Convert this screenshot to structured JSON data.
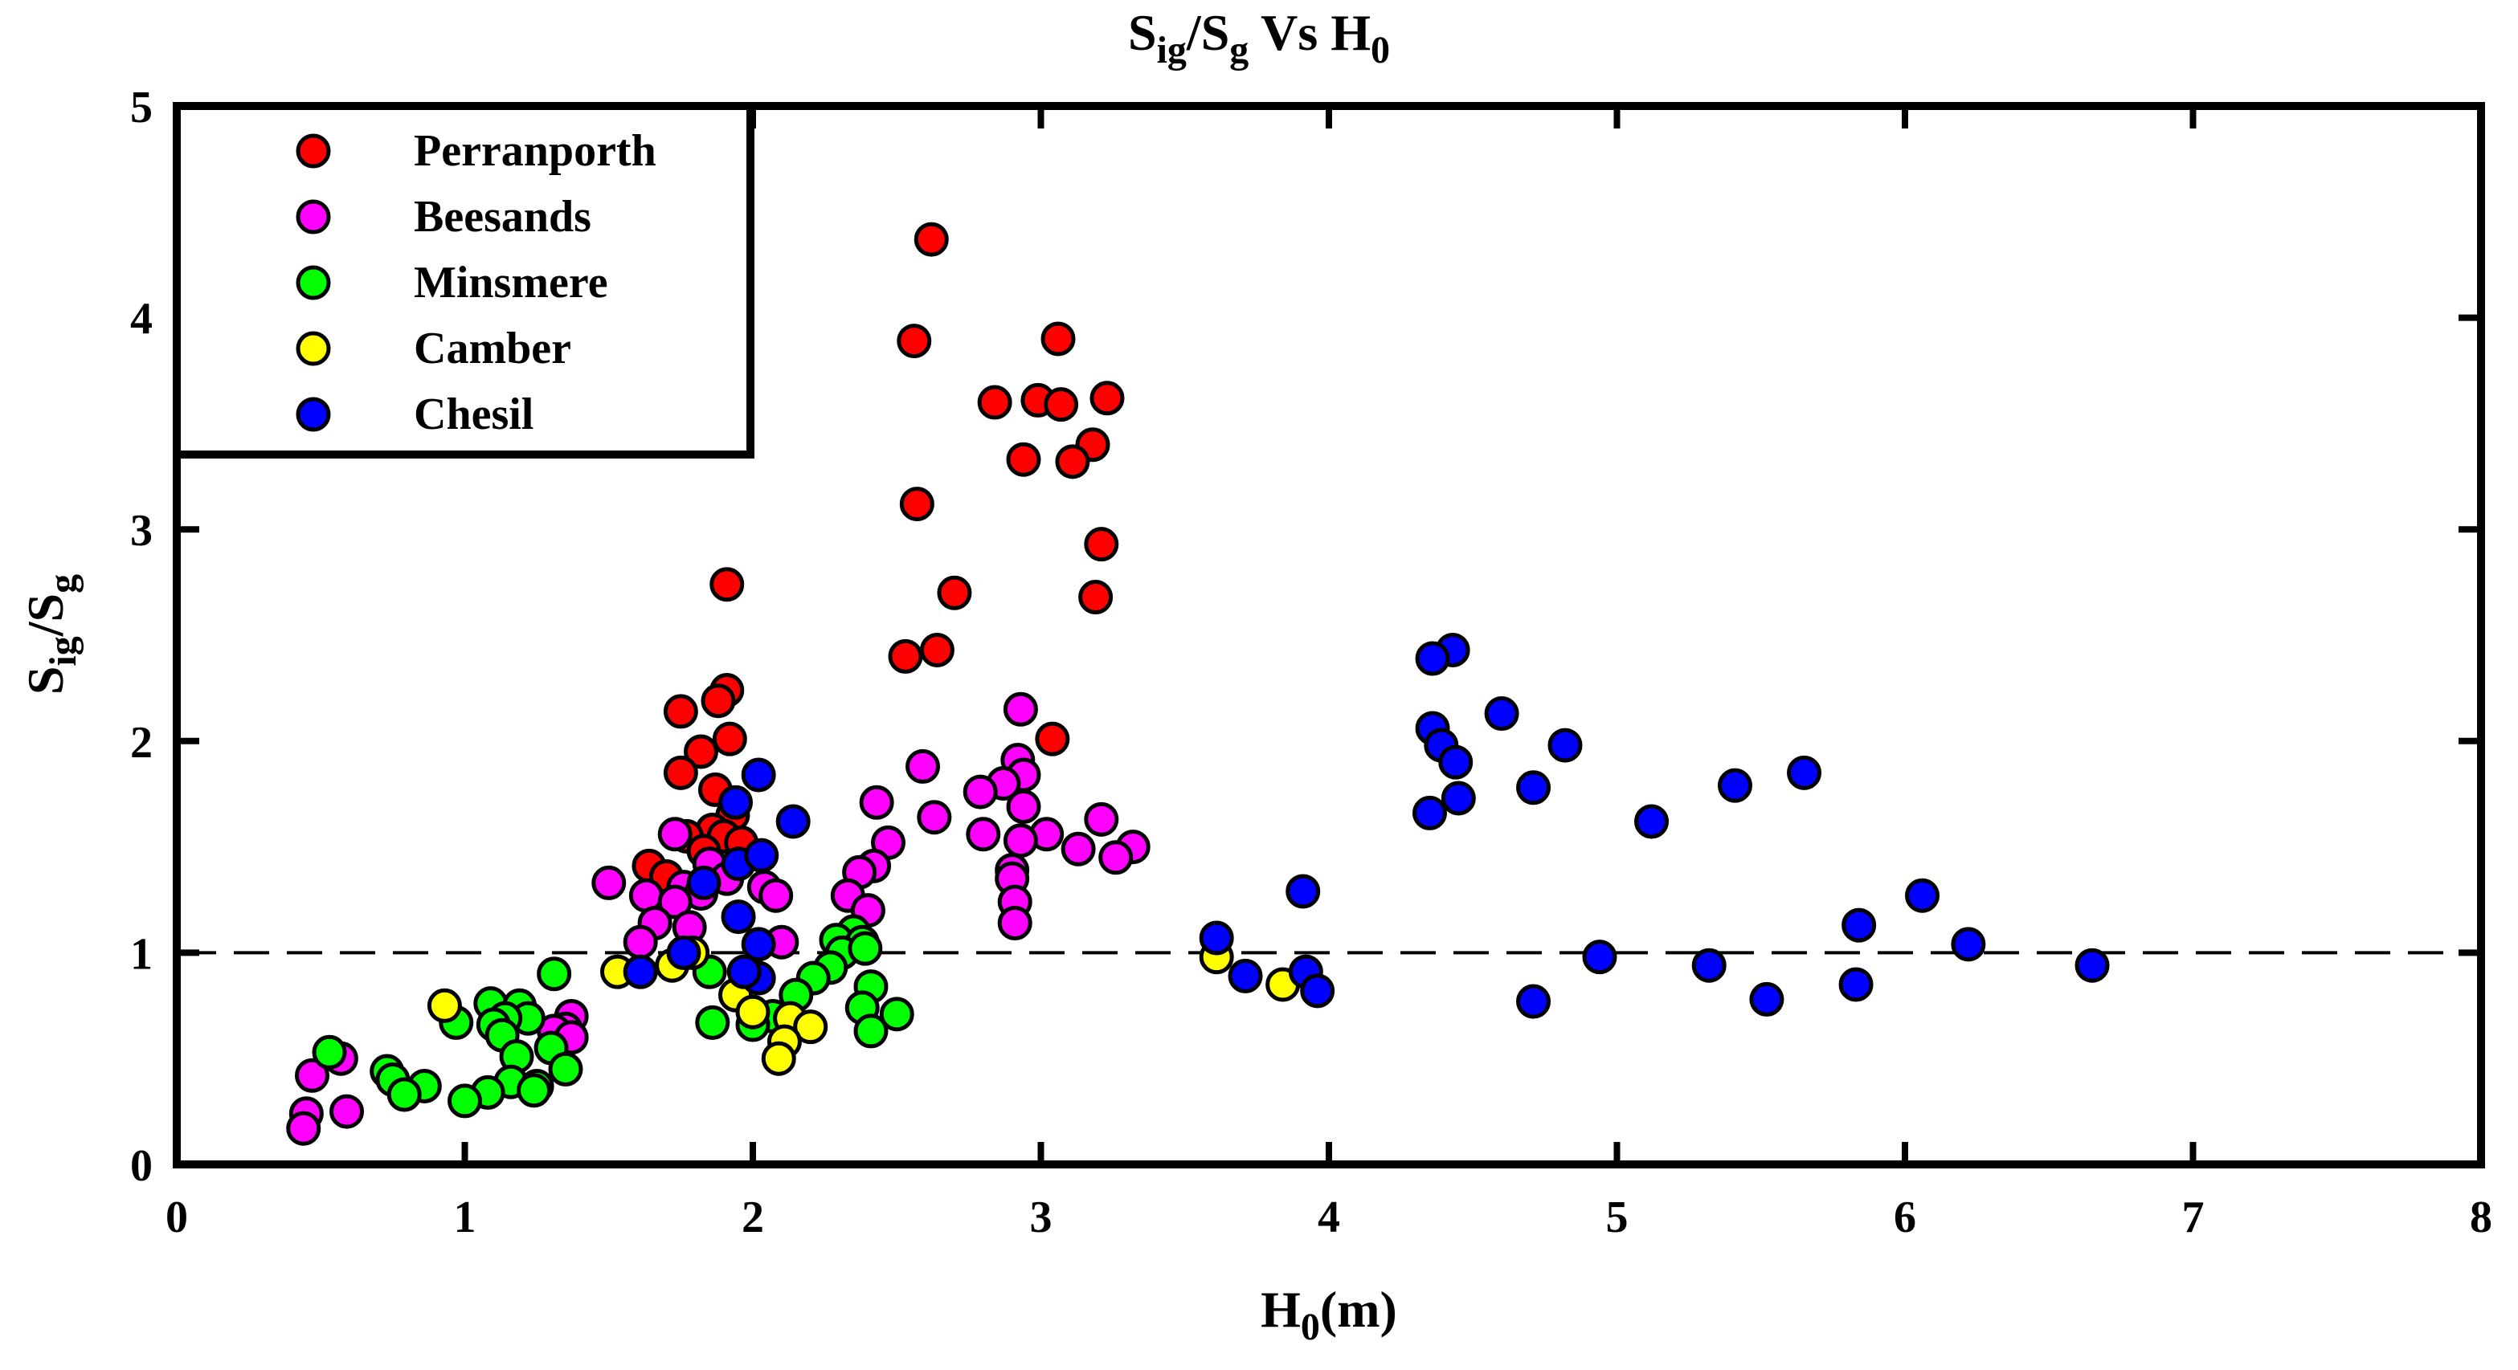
{
  "chart_data": {
    "type": "scatter",
    "title": {
      "main1": "S",
      "sub1": "ig",
      "main2": "/S",
      "sub2": "g",
      "main3": " Vs H",
      "sub3": "0"
    },
    "xlabel": {
      "main": "H",
      "sub": "0",
      "rest": "(m)"
    },
    "ylabel": {
      "main1": "S",
      "sub1": "ig",
      "main2": "/S",
      "sub2": "g"
    },
    "xlim": [
      0,
      8
    ],
    "ylim": [
      0,
      5
    ],
    "x_ticks": [
      "0",
      "1",
      "2",
      "3",
      "4",
      "5",
      "6",
      "7",
      "8"
    ],
    "y_ticks": [
      "0",
      "1",
      "2",
      "3",
      "4",
      "5"
    ],
    "reference_line": {
      "y": 1,
      "style": "dashed"
    },
    "legend_position": "top-left",
    "series": [
      {
        "name": "Perranporth",
        "color": "#ff0000",
        "points": [
          [
            2.62,
            4.37
          ],
          [
            2.56,
            3.89
          ],
          [
            3.06,
            3.9
          ],
          [
            2.84,
            3.6
          ],
          [
            2.99,
            3.61
          ],
          [
            3.07,
            3.59
          ],
          [
            3.23,
            3.62
          ],
          [
            3.18,
            3.4
          ],
          [
            2.94,
            3.33
          ],
          [
            3.11,
            3.32
          ],
          [
            2.57,
            3.12
          ],
          [
            3.21,
            2.93
          ],
          [
            1.91,
            2.74
          ],
          [
            2.7,
            2.7
          ],
          [
            3.19,
            2.68
          ],
          [
            2.64,
            2.43
          ],
          [
            2.53,
            2.4
          ],
          [
            1.91,
            2.24
          ],
          [
            1.88,
            2.19
          ],
          [
            1.75,
            2.14
          ],
          [
            1.92,
            2.01
          ],
          [
            3.04,
            2.01
          ],
          [
            1.82,
            1.95
          ],
          [
            1.75,
            1.85
          ],
          [
            1.87,
            1.77
          ],
          [
            1.93,
            1.65
          ],
          [
            1.86,
            1.58
          ],
          [
            1.9,
            1.55
          ],
          [
            1.77,
            1.55
          ],
          [
            1.96,
            1.52
          ],
          [
            1.83,
            1.48
          ],
          [
            1.64,
            1.41
          ],
          [
            1.7,
            1.36
          ]
        ]
      },
      {
        "name": "Beesands",
        "color": "#ff00ff",
        "points": [
          [
            2.93,
            2.15
          ],
          [
            2.92,
            1.91
          ],
          [
            2.59,
            1.88
          ],
          [
            2.94,
            1.84
          ],
          [
            2.87,
            1.8
          ],
          [
            2.43,
            1.71
          ],
          [
            2.94,
            1.69
          ],
          [
            2.79,
            1.76
          ],
          [
            2.63,
            1.64
          ],
          [
            3.21,
            1.63
          ],
          [
            1.73,
            1.56
          ],
          [
            2.8,
            1.56
          ],
          [
            3.02,
            1.56
          ],
          [
            2.93,
            1.53
          ],
          [
            2.47,
            1.52
          ],
          [
            3.13,
            1.49
          ],
          [
            3.32,
            1.5
          ],
          [
            3.26,
            1.45
          ],
          [
            1.85,
            1.42
          ],
          [
            2.42,
            1.41
          ],
          [
            2.37,
            1.38
          ],
          [
            2.9,
            1.39
          ],
          [
            2.9,
            1.35
          ],
          [
            1.91,
            1.35
          ],
          [
            2.04,
            1.31
          ],
          [
            1.5,
            1.33
          ],
          [
            1.76,
            1.31
          ],
          [
            1.82,
            1.28
          ],
          [
            2.08,
            1.27
          ],
          [
            2.33,
            1.27
          ],
          [
            1.63,
            1.27
          ],
          [
            1.73,
            1.24
          ],
          [
            2.91,
            1.24
          ],
          [
            2.4,
            1.2
          ],
          [
            1.66,
            1.14
          ],
          [
            2.91,
            1.14
          ],
          [
            1.78,
            1.12
          ],
          [
            1.61,
            1.05
          ],
          [
            2.1,
            1.05
          ],
          [
            1.37,
            0.7
          ],
          [
            1.35,
            0.64
          ],
          [
            1.31,
            0.63
          ],
          [
            1.37,
            0.6
          ],
          [
            0.47,
            0.42
          ],
          [
            0.57,
            0.5
          ],
          [
            0.45,
            0.24
          ],
          [
            0.59,
            0.25
          ],
          [
            0.44,
            0.17
          ]
        ]
      },
      {
        "name": "Minsmere",
        "color": "#00ff00",
        "points": [
          [
            2.35,
            1.1
          ],
          [
            2.29,
            1.06
          ],
          [
            2.38,
            1.05
          ],
          [
            2.31,
            1.0
          ],
          [
            2.39,
            1.02
          ],
          [
            2.27,
            0.93
          ],
          [
            2.21,
            0.88
          ],
          [
            2.41,
            0.84
          ],
          [
            2.15,
            0.8
          ],
          [
            2.38,
            0.74
          ],
          [
            1.31,
            0.9
          ],
          [
            1.85,
            0.91
          ],
          [
            1.09,
            0.76
          ],
          [
            1.19,
            0.75
          ],
          [
            2.5,
            0.71
          ],
          [
            2.07,
            0.7
          ],
          [
            1.22,
            0.69
          ],
          [
            1.14,
            0.69
          ],
          [
            1.1,
            0.66
          ],
          [
            0.97,
            0.67
          ],
          [
            1.86,
            0.67
          ],
          [
            2.0,
            0.66
          ],
          [
            1.13,
            0.61
          ],
          [
            2.15,
            0.66
          ],
          [
            2.41,
            0.63
          ],
          [
            1.3,
            0.55
          ],
          [
            1.18,
            0.51
          ],
          [
            0.53,
            0.53
          ],
          [
            1.35,
            0.45
          ],
          [
            0.73,
            0.44
          ],
          [
            1.16,
            0.39
          ],
          [
            1.25,
            0.37
          ],
          [
            0.86,
            0.37
          ],
          [
            0.75,
            0.4
          ],
          [
            0.79,
            0.33
          ],
          [
            1.08,
            0.34
          ],
          [
            1.0,
            0.3
          ],
          [
            1.24,
            0.35
          ]
        ]
      },
      {
        "name": "Camber",
        "color": "#ffff00",
        "points": [
          [
            0.93,
            0.75
          ],
          [
            1.53,
            0.91
          ],
          [
            1.72,
            0.94
          ],
          [
            1.79,
            1.0
          ],
          [
            1.94,
            0.8
          ],
          [
            2.0,
            0.72
          ],
          [
            2.13,
            0.69
          ],
          [
            2.2,
            0.65
          ],
          [
            2.11,
            0.58
          ],
          [
            2.09,
            0.5
          ],
          [
            3.61,
            0.98
          ],
          [
            3.84,
            0.85
          ]
        ]
      },
      {
        "name": "Chesil",
        "color": "#0000ff",
        "points": [
          [
            2.02,
            1.84
          ],
          [
            1.94,
            1.71
          ],
          [
            2.14,
            1.62
          ],
          [
            1.95,
            1.42
          ],
          [
            2.03,
            1.46
          ],
          [
            1.83,
            1.33
          ],
          [
            1.95,
            1.17
          ],
          [
            1.76,
            1.0
          ],
          [
            2.02,
            1.04
          ],
          [
            1.61,
            0.91
          ],
          [
            2.02,
            0.88
          ],
          [
            1.97,
            0.91
          ],
          [
            4.43,
            2.43
          ],
          [
            4.36,
            2.39
          ],
          [
            4.6,
            2.13
          ],
          [
            4.36,
            2.06
          ],
          [
            4.39,
            1.98
          ],
          [
            4.82,
            1.98
          ],
          [
            4.44,
            1.9
          ],
          [
            4.71,
            1.78
          ],
          [
            4.45,
            1.73
          ],
          [
            4.35,
            1.66
          ],
          [
            5.41,
            1.79
          ],
          [
            5.65,
            1.85
          ],
          [
            5.12,
            1.62
          ],
          [
            3.91,
            1.29
          ],
          [
            6.06,
            1.27
          ],
          [
            3.61,
            1.07
          ],
          [
            5.84,
            1.13
          ],
          [
            6.22,
            1.04
          ],
          [
            4.94,
            0.98
          ],
          [
            5.32,
            0.94
          ],
          [
            6.65,
            0.94
          ],
          [
            3.71,
            0.89
          ],
          [
            3.92,
            0.91
          ],
          [
            3.96,
            0.82
          ],
          [
            5.83,
            0.85
          ],
          [
            4.71,
            0.77
          ],
          [
            5.52,
            0.78
          ]
        ]
      }
    ]
  }
}
